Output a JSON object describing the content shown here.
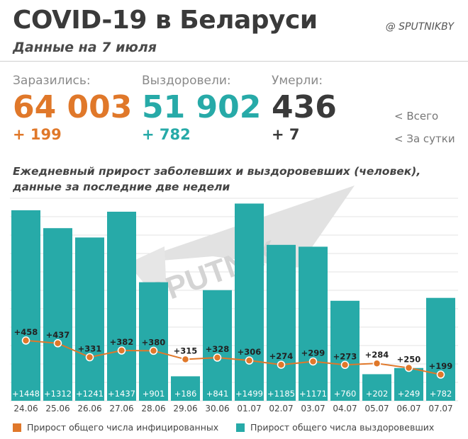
{
  "header": {
    "title": "COVID-19 в Беларуси",
    "subtitle": "Данные на 7 июля",
    "brand": "@ SPUTNIKBY"
  },
  "stats": [
    {
      "label": "Заразились:",
      "total": "64 003",
      "delta": "+ 199",
      "color": "#e0782a"
    },
    {
      "label": "Выздоровели:",
      "total": "51 902",
      "delta": "+ 782",
      "color": "#27aaa8"
    },
    {
      "label": "Умерли:",
      "total": "436",
      "delta": "+ 7",
      "color": "#3a3a3a"
    }
  ],
  "side_legend": {
    "total": "<  Всего",
    "daily": "<  За сутки"
  },
  "chart_title": {
    "line1": "Ежедневный прирост заболевших и выздоровевших (человек),",
    "line2": "данные за последние две недели"
  },
  "watermark": "SPUTNIK",
  "legend": {
    "infected": "Прирост общего числа инфицированных",
    "recovered": "Прирост общего числа выздоровевших"
  },
  "colors": {
    "bar": "#27aaa8",
    "line": "#e0782a",
    "grid": "#e3e3e3",
    "watermark": "#d9d9d9"
  },
  "chart_data": {
    "type": "bar",
    "categories": [
      "24.06",
      "25.06",
      "26.06",
      "27.06",
      "28.06",
      "29.06",
      "30.06",
      "01.07",
      "02.07",
      "03.07",
      "04.07",
      "05.07",
      "06.07",
      "07.07"
    ],
    "series": [
      {
        "name": "Прирост общего числа выздоровевших",
        "type": "bar",
        "values": [
          1448,
          1312,
          1241,
          1437,
          901,
          186,
          841,
          1499,
          1185,
          1171,
          760,
          202,
          249,
          782
        ],
        "labels": [
          "+1448",
          "+1312",
          "+1241",
          "+1437",
          "+901",
          "+186",
          "+841",
          "+1499",
          "+1185",
          "+1171",
          "+760",
          "+202",
          "+249",
          "+782"
        ]
      },
      {
        "name": "Прирост общего числа инфицированных",
        "type": "line",
        "values": [
          458,
          437,
          331,
          382,
          380,
          315,
          328,
          306,
          274,
          299,
          273,
          284,
          250,
          199
        ],
        "labels": [
          "+458",
          "+437",
          "+331",
          "+382",
          "+380",
          "+315",
          "+328",
          "+306",
          "+274",
          "+299",
          "+273",
          "+284",
          "+250",
          "+199"
        ]
      }
    ],
    "ylim": [
      0,
      1550
    ],
    "grid": true
  }
}
